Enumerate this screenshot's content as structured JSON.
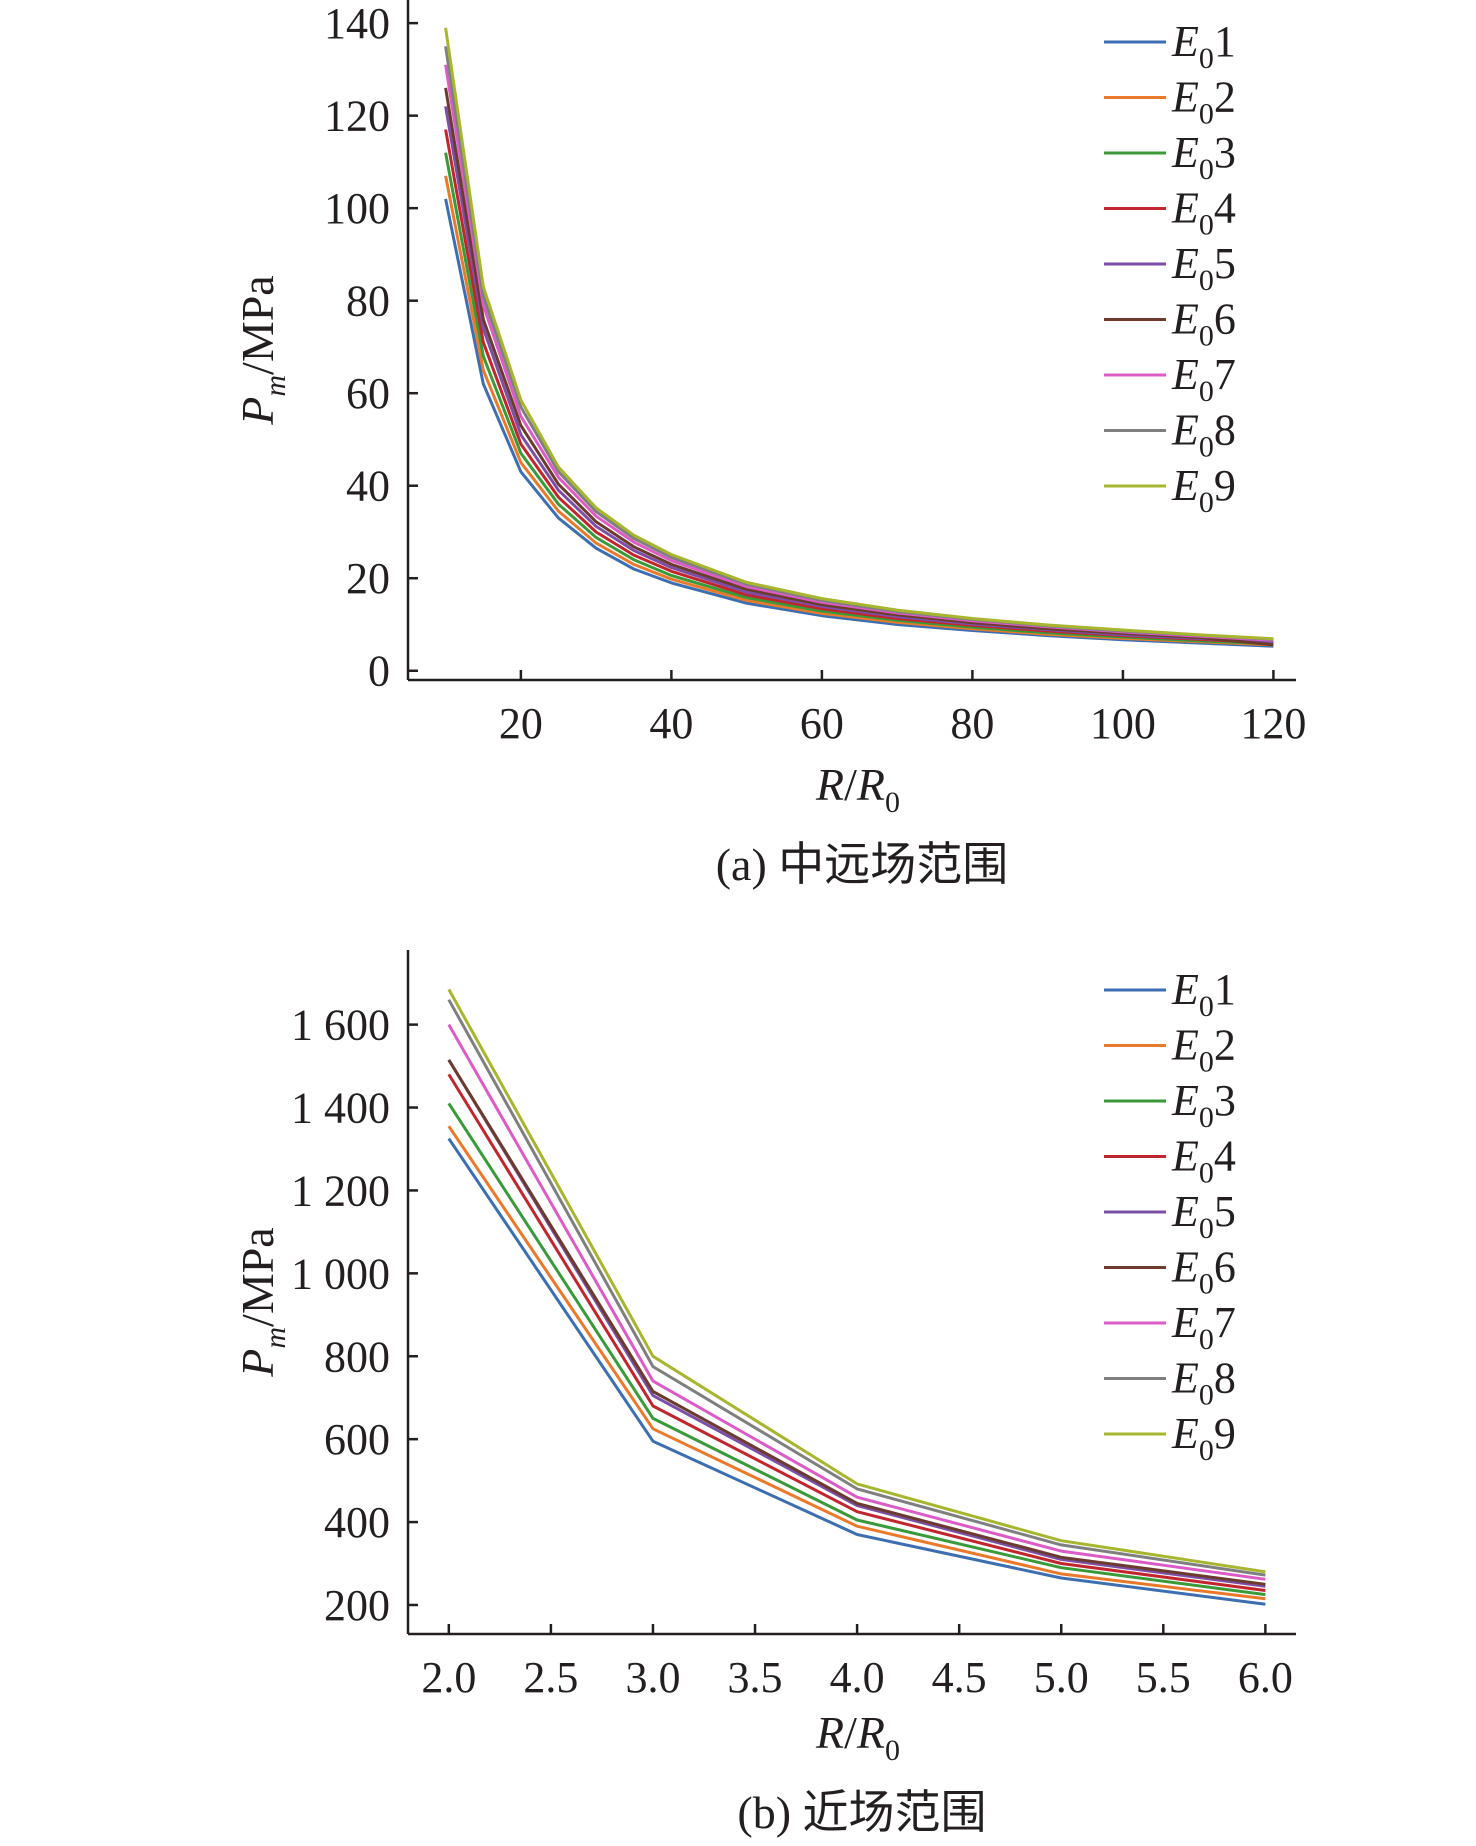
{
  "chart_data": [
    {
      "type": "line",
      "caption": "(a) 中远场范围",
      "ylabel": {
        "main": "P",
        "sub": "m",
        "unit": "/MPa"
      },
      "xlabel": {
        "main": "R",
        "sep": "/",
        "main2": "R",
        "sub": "0"
      },
      "xlim": [
        5,
        123
      ],
      "ylim": [
        -2,
        145
      ],
      "xticks": [
        20,
        40,
        60,
        80,
        100,
        120
      ],
      "yticks": [
        0,
        20,
        40,
        60,
        80,
        100,
        120,
        140
      ],
      "xtick_labels": [
        "20",
        "40",
        "60",
        "80",
        "100",
        "120"
      ],
      "ytick_labels": [
        "0",
        "20",
        "40",
        "60",
        "80",
        "100",
        "120",
        "140"
      ],
      "grid": false,
      "legend_position": "top-right",
      "x": [
        10,
        15,
        20,
        25,
        30,
        35,
        40,
        50,
        60,
        70,
        80,
        90,
        100,
        110,
        120
      ],
      "series": [
        {
          "name": "E01",
          "legend": {
            "main": "E",
            "sub": "0",
            "num": "1"
          },
          "color": "#3d6fb0",
          "values": [
            102,
            62,
            43,
            33,
            26.5,
            22,
            19,
            14.6,
            11.9,
            10,
            8.7,
            7.6,
            6.7,
            6,
            5.3
          ]
        },
        {
          "name": "E02",
          "legend": {
            "main": "E",
            "sub": "0",
            "num": "2"
          },
          "color": "#e97a2c",
          "values": [
            107,
            65,
            45,
            34.5,
            27.6,
            23,
            19.8,
            15.2,
            12.4,
            10.5,
            9.1,
            7.9,
            7,
            6.3,
            5.6
          ]
        },
        {
          "name": "E03",
          "legend": {
            "main": "E",
            "sub": "0",
            "num": "3"
          },
          "color": "#3a9a3a",
          "values": [
            112,
            68,
            47,
            36,
            28.8,
            24,
            20.6,
            15.8,
            12.9,
            10.9,
            9.4,
            8.2,
            7.3,
            6.5,
            5.8
          ]
        },
        {
          "name": "E04",
          "legend": {
            "main": "E",
            "sub": "0",
            "num": "4"
          },
          "color": "#c0262d",
          "values": [
            117,
            71,
            49,
            37.5,
            30,
            25,
            21.5,
            16.4,
            13.4,
            11.3,
            9.8,
            8.6,
            7.6,
            6.8,
            6
          ]
        },
        {
          "name": "E05",
          "legend": {
            "main": "E",
            "sub": "0",
            "num": "5"
          },
          "color": "#7b4fa6",
          "values": [
            122,
            74,
            51,
            39,
            31.2,
            26,
            22.3,
            17,
            13.9,
            11.7,
            10.1,
            8.9,
            7.8,
            7,
            6.2
          ]
        },
        {
          "name": "E06",
          "legend": {
            "main": "E",
            "sub": "0",
            "num": "6"
          },
          "color": "#6b3b2e",
          "values": [
            126,
            76,
            53,
            40.3,
            32.2,
            26.8,
            23,
            17.6,
            14.3,
            12.1,
            10.4,
            9.1,
            8.1,
            7.2,
            5.6
          ]
        },
        {
          "name": "E07",
          "legend": {
            "main": "E",
            "sub": "0",
            "num": "7"
          },
          "color": "#db5cc6",
          "values": [
            131,
            79,
            55,
            41.8,
            33.4,
            27.8,
            23.8,
            18.2,
            14.8,
            12.5,
            10.8,
            9.5,
            8.4,
            7.5,
            6.6
          ]
        },
        {
          "name": "E08",
          "legend": {
            "main": "E",
            "sub": "0",
            "num": "8"
          },
          "color": "#7f7f7f",
          "values": [
            135,
            81,
            57,
            43,
            34.4,
            28.6,
            24.5,
            18.7,
            15.2,
            12.8,
            11.1,
            9.7,
            8.6,
            7.7,
            6.8
          ]
        },
        {
          "name": "E09",
          "legend": {
            "main": "E",
            "sub": "0",
            "num": "9"
          },
          "color": "#a8b52f",
          "values": [
            139,
            83,
            58.5,
            44,
            35.2,
            29.3,
            25.1,
            19.1,
            15.6,
            13.1,
            11.3,
            9.9,
            8.8,
            7.8,
            6.9
          ]
        }
      ]
    },
    {
      "type": "line",
      "caption": "(b) 近场范围",
      "ylabel": {
        "main": "P",
        "sub": "m",
        "unit": "/MPa"
      },
      "xlabel": {
        "main": "R",
        "sep": "/",
        "main2": "R",
        "sub": "0"
      },
      "xlim": [
        1.8,
        6.15
      ],
      "ylim": [
        130,
        1780
      ],
      "xticks": [
        2.0,
        2.5,
        3.0,
        3.5,
        4.0,
        4.5,
        5.0,
        5.5,
        6.0
      ],
      "yticks": [
        200,
        400,
        600,
        800,
        1000,
        1200,
        1400,
        1600
      ],
      "xtick_labels": [
        "2.0",
        "2.5",
        "3.0",
        "3.5",
        "4.0",
        "4.5",
        "5.0",
        "5.5",
        "6.0"
      ],
      "ytick_labels": [
        "200",
        "400",
        "600",
        "800",
        "1 000",
        "1 200",
        "1 400",
        "1 600"
      ],
      "grid": false,
      "legend_position": "top-right",
      "x": [
        2.0,
        3.0,
        4.0,
        5.0,
        6.0
      ],
      "series": [
        {
          "name": "E01",
          "legend": {
            "main": "E",
            "sub": "0",
            "num": "1"
          },
          "color": "#3d6fb0",
          "values": [
            1325,
            595,
            370,
            265,
            202
          ]
        },
        {
          "name": "E02",
          "legend": {
            "main": "E",
            "sub": "0",
            "num": "2"
          },
          "color": "#e97a2c",
          "values": [
            1355,
            625,
            390,
            275,
            215
          ]
        },
        {
          "name": "E03",
          "legend": {
            "main": "E",
            "sub": "0",
            "num": "3"
          },
          "color": "#3a9a3a",
          "values": [
            1410,
            650,
            405,
            290,
            225
          ]
        },
        {
          "name": "E04",
          "legend": {
            "main": "E",
            "sub": "0",
            "num": "4"
          },
          "color": "#c0262d",
          "values": [
            1480,
            680,
            425,
            300,
            235
          ]
        },
        {
          "name": "E05",
          "legend": {
            "main": "E",
            "sub": "0",
            "num": "5"
          },
          "color": "#7b4fa6",
          "values": [
            1515,
            705,
            440,
            310,
            245
          ]
        },
        {
          "name": "E06",
          "legend": {
            "main": "E",
            "sub": "0",
            "num": "6"
          },
          "color": "#6b3b2e",
          "values": [
            1515,
            715,
            445,
            315,
            250
          ]
        },
        {
          "name": "E07",
          "legend": {
            "main": "E",
            "sub": "0",
            "num": "7"
          },
          "color": "#db5cc6",
          "values": [
            1600,
            740,
            460,
            330,
            262
          ]
        },
        {
          "name": "E08",
          "legend": {
            "main": "E",
            "sub": "0",
            "num": "8"
          },
          "color": "#7f7f7f",
          "values": [
            1660,
            775,
            480,
            345,
            272
          ]
        },
        {
          "name": "E09",
          "legend": {
            "main": "E",
            "sub": "0",
            "num": "9"
          },
          "color": "#a8b52f",
          "values": [
            1685,
            800,
            492,
            355,
            280
          ]
        }
      ]
    }
  ]
}
